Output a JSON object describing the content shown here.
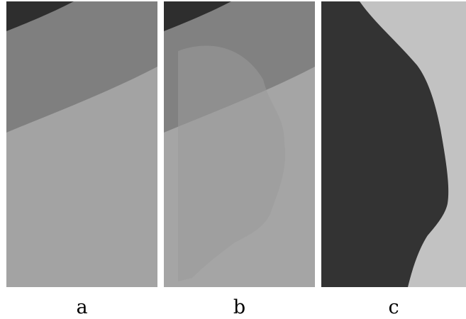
{
  "panels": [
    {
      "id": "a",
      "caption": "a"
    },
    {
      "id": "b",
      "caption": "b"
    },
    {
      "id": "c",
      "caption": "c"
    }
  ],
  "colors": {
    "dark_region": "#2e2e2e",
    "mid_region": "#7f7f7f",
    "light_region": "#a3a3a3",
    "mask_dark": "#333333",
    "mask_light": "#c2c2c2",
    "background": "#ffffff"
  }
}
